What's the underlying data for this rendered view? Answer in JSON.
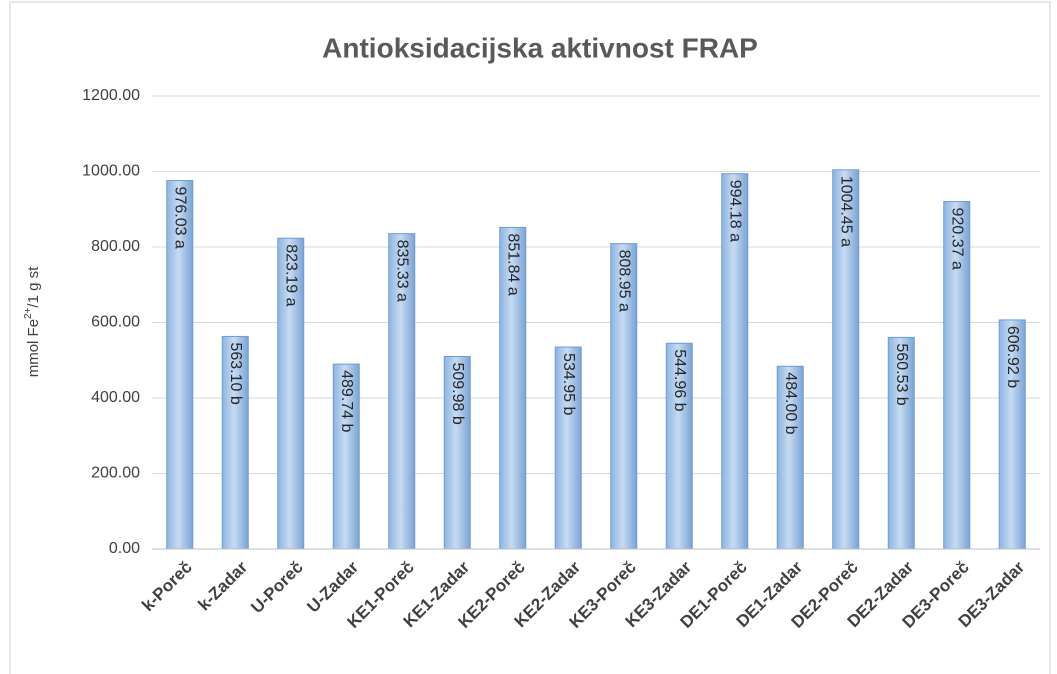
{
  "chart_data": {
    "type": "bar",
    "title": "Antioksidacijska aktivnost FRAP",
    "y_label": {
      "text": "mmol Fe",
      "sup": "2+",
      "rest": "/1 g st"
    },
    "categories": [
      "k-Poreč",
      "k-Zadar",
      "U-Poreč",
      "U-Zadar",
      "KE1-Poreč",
      "KE1-Zadar",
      "KE2-Poreč",
      "KE2-Zadar",
      "KE3-Poreč",
      "KE3-Zadar",
      "DE1-Poreč",
      "DE1-Zadar",
      "DE2-Poreč",
      "DE2-Zadar",
      "DE3-Poreč",
      "DE3-Zadar"
    ],
    "values": [
      976.03,
      563.1,
      823.19,
      489.74,
      835.33,
      509.98,
      851.84,
      534.95,
      808.95,
      544.96,
      994.18,
      484.0,
      1004.45,
      560.53,
      920.37,
      606.92
    ],
    "value_labels": [
      "976.03 a",
      "563.10 b",
      "823.19 a",
      "489.74 b",
      "835.33 a",
      "509.98 b",
      "851.84 a",
      "534.95 b",
      "808.95 a",
      "544.96 b",
      "994.18 a",
      "484.00 b",
      "1004.45 a",
      "560.53 b",
      "920.37 a",
      "606.92 b"
    ],
    "color": "#9dc3e6",
    "ylim": [
      0,
      1200
    ],
    "yticks": [
      {
        "value": 0,
        "label": "0.00"
      },
      {
        "value": 200,
        "label": "200.00"
      },
      {
        "value": 400,
        "label": "400.00"
      },
      {
        "value": 600,
        "label": "600.00"
      },
      {
        "value": 800,
        "label": "800.00"
      },
      {
        "value": 1000,
        "label": "1000.00"
      },
      {
        "value": 1200,
        "label": "1200.00"
      }
    ],
    "grid": true
  }
}
